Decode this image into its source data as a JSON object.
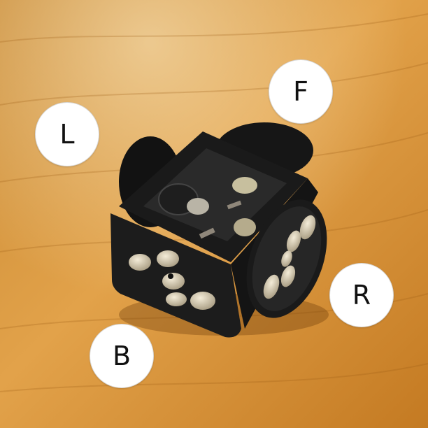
{
  "labels": {
    "front": "F",
    "left": "L",
    "right": "R",
    "back": "B"
  },
  "colors": {
    "wood_light": "#e6a040",
    "wood_dark": "#b8721c",
    "plastic": "#141414",
    "label_bg": "#ffffff",
    "magnet": "#d9cfb8"
  }
}
